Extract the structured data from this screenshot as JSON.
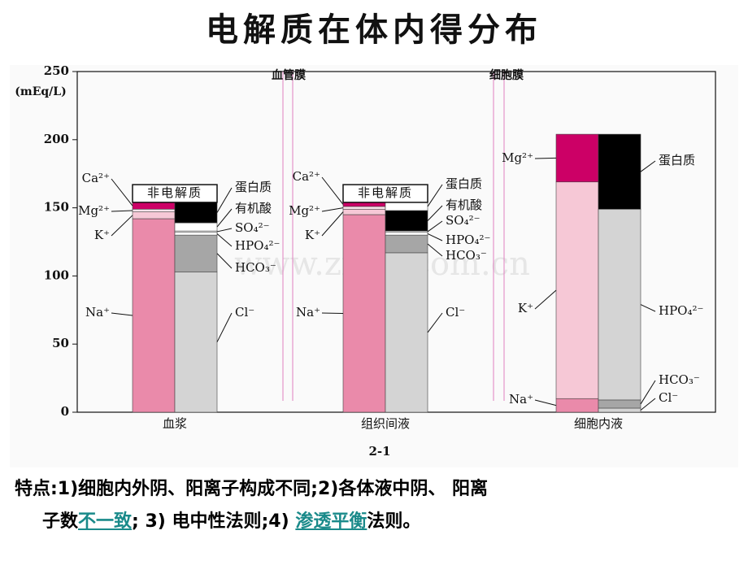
{
  "chart_data": {
    "type": "stacked-ion-columns",
    "title": "电解质在体内得分布",
    "y_label": "(mEq/L)",
    "watermark": "www.zixin.com.cn",
    "figure_label": "2-1",
    "annotations": [
      "血管膜",
      "细胞膜"
    ],
    "categories": [
      "血浆",
      "组织间液",
      "细胞内液"
    ],
    "ylim": [
      0,
      250
    ],
    "yticks": [
      0,
      50,
      100,
      150,
      200,
      250
    ],
    "non_electrolyte": {
      "label": "非电解质",
      "values": [
        13,
        13,
        null
      ]
    },
    "series": [
      {
        "name": "Na⁺",
        "stack": "cation",
        "colors": [
          "#ea8aaa",
          "#ea8aaa",
          "#ea8aaa"
        ],
        "values": [
          142,
          145,
          10
        ]
      },
      {
        "name": "K⁺",
        "stack": "cation",
        "colors": [
          "#f6c8d6",
          "#f6c8d6",
          "#f6c8d6"
        ],
        "values": [
          5,
          4,
          159
        ]
      },
      {
        "name": "Mg²⁺",
        "stack": "cation",
        "colors": [
          "#f9e2ea",
          "#f9e2ea",
          "#cc0066"
        ],
        "values": [
          2,
          2,
          35
        ]
      },
      {
        "name": "Ca²⁺",
        "stack": "cation",
        "colors": [
          "#cc0066",
          "#cc0066",
          "#cc0066"
        ],
        "values": [
          5,
          3,
          null
        ]
      },
      {
        "name": "Cl⁻",
        "stack": "anion",
        "colors": [
          "#d4d4d4",
          "#d4d4d4",
          "#d4d4d4"
        ],
        "values": [
          103,
          117,
          3
        ]
      },
      {
        "name": "HCO₃⁻",
        "stack": "anion",
        "colors": [
          "#a6a6a6",
          "#a6a6a6",
          "#a6a6a6"
        ],
        "values": [
          27,
          13,
          6
        ]
      },
      {
        "name": "HPO₄²⁻",
        "stack": "anion",
        "colors": [
          "#ffffff",
          "#ffffff",
          "#d4d4d4"
        ],
        "values": [
          2,
          2,
          140
        ]
      },
      {
        "name": "SO₄²⁻",
        "stack": "anion",
        "colors": [
          "#ffffff",
          "#ffffff",
          "#ffffff"
        ],
        "values": [
          1,
          1,
          null
        ]
      },
      {
        "name": "有机酸",
        "stack": "anion",
        "colors": [
          "#ffffff",
          "#000000",
          "#ffffff"
        ],
        "values": [
          6,
          15,
          null
        ]
      },
      {
        "name": "蛋白质",
        "stack": "anion",
        "colors": [
          "#000000",
          "#ffffff",
          "#000000"
        ],
        "values": [
          15,
          6,
          55
        ]
      }
    ]
  },
  "footnote": {
    "part1": "特点:1)细胞内外阴、阳离子构成不同;2)各体液中阴、 阳离",
    "part2": "子数",
    "link1": "不一致",
    "part3": "; 3) 电中性法则;4) ",
    "link2": "渗透平衡",
    "part4": "法则。"
  }
}
